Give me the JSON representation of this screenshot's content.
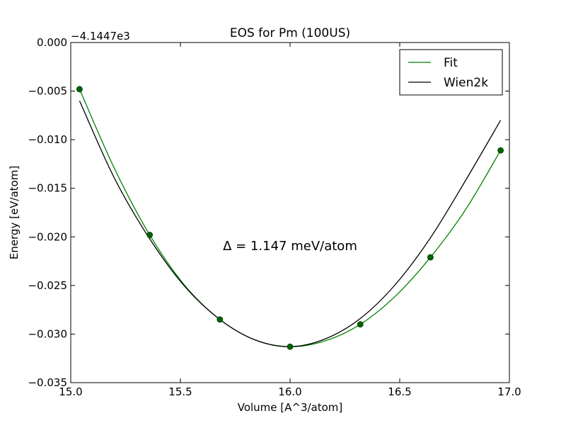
{
  "chart_data": {
    "type": "line",
    "title": "EOS for Pm (100US)",
    "xlabel": "Volume [A^3/atom]",
    "ylabel": "Energy [eV/atom]",
    "offset_label": "−4.1447e3",
    "annotation": "Δ = 1.147 meV/atom",
    "xlim": [
      15.0,
      17.0
    ],
    "ylim": [
      -0.035,
      0.0
    ],
    "x_ticks": [
      15.0,
      15.5,
      16.0,
      16.5,
      17.0
    ],
    "x_tick_labels": [
      "15.0",
      "15.5",
      "16.0",
      "16.5",
      "17.0"
    ],
    "y_ticks": [
      0.0,
      -0.005,
      -0.01,
      -0.015,
      -0.02,
      -0.025,
      -0.03,
      -0.035
    ],
    "y_tick_labels": [
      "0.000",
      "−0.005",
      "−0.010",
      "−0.015",
      "−0.020",
      "−0.025",
      "−0.030",
      "−0.035"
    ],
    "grid": false,
    "legend_position": "top-right",
    "series": [
      {
        "name": "Fit",
        "kind": "line",
        "color": "#008000",
        "x": [
          15.04,
          15.2,
          15.36,
          15.52,
          15.68,
          15.84,
          16.0,
          16.16,
          16.32,
          16.48,
          16.64,
          16.8,
          16.96
        ],
        "y": [
          -0.0048,
          -0.013,
          -0.0198,
          -0.025,
          -0.0285,
          -0.0306,
          -0.0313,
          -0.0307,
          -0.029,
          -0.0261,
          -0.0221,
          -0.0172,
          -0.0111
        ]
      },
      {
        "name": "Wien2k",
        "kind": "line",
        "color": "#000000",
        "x": [
          15.04,
          15.2,
          15.36,
          15.52,
          15.68,
          15.84,
          16.0,
          16.16,
          16.32,
          16.48,
          16.64,
          16.8,
          16.96
        ],
        "y": [
          -0.006,
          -0.014,
          -0.0202,
          -0.0251,
          -0.0285,
          -0.0306,
          -0.0313,
          -0.0305,
          -0.0284,
          -0.0249,
          -0.0201,
          -0.0142,
          -0.008
        ]
      },
      {
        "kind": "points",
        "color": "#006400",
        "x": [
          15.04,
          15.36,
          15.68,
          16.0,
          16.32,
          16.64,
          16.96
        ],
        "y": [
          -0.0048,
          -0.0198,
          -0.0285,
          -0.0313,
          -0.029,
          -0.0221,
          -0.0111
        ]
      }
    ]
  }
}
